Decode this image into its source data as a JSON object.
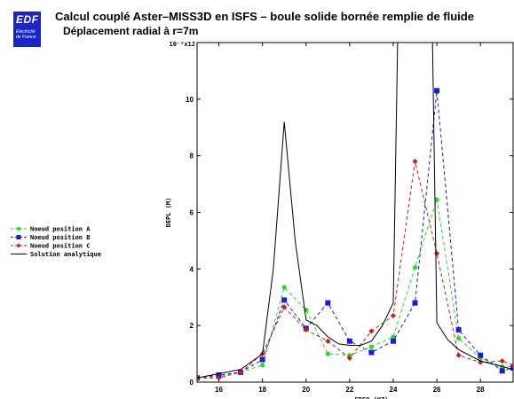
{
  "logo": {
    "main": "EDF",
    "sub": [
      "Electricité",
      "de France"
    ]
  },
  "header": {
    "title": "Calcul couplé Aster–MISS3D en ISFS – boule solide bornée remplie de fluide",
    "subtitle": "Déplacement radial à r=7m"
  },
  "chart_data": {
    "type": "line",
    "ylabel": "DEPL (M)",
    "xlabel": "FREQ (HZ)",
    "y_multiplier": "10⁻²x12",
    "xlim": [
      15,
      29.5
    ],
    "ylim": [
      0,
      12
    ],
    "x_ticks": [
      16,
      18,
      20,
      22,
      24,
      26,
      28
    ],
    "y_ticks": [
      0,
      2,
      4,
      6,
      8,
      10
    ],
    "grid": false,
    "legend_position": "left",
    "series": [
      {
        "name": "Noeud position A",
        "color": "#22dd22",
        "marker": "circle",
        "dash": true,
        "x": [
          15,
          16,
          17,
          18,
          19,
          20,
          21,
          22,
          23,
          24,
          25,
          26,
          27,
          28,
          29,
          29.5
        ],
        "y": [
          0.15,
          0.2,
          0.35,
          0.6,
          3.35,
          2.55,
          1.0,
          0.95,
          1.25,
          1.6,
          4.05,
          6.45,
          1.55,
          0.85,
          0.55,
          0.55
        ]
      },
      {
        "name": "Noeud position B",
        "color": "#1a1ae0",
        "marker": "square",
        "dash": true,
        "x": [
          15,
          16,
          17,
          18,
          19,
          20,
          21,
          22,
          23,
          24,
          25,
          26,
          27,
          28,
          29,
          29.5
        ],
        "y": [
          0.15,
          0.25,
          0.35,
          0.8,
          2.9,
          1.9,
          2.8,
          1.45,
          1.05,
          1.45,
          2.8,
          10.3,
          1.85,
          0.95,
          0.4,
          0.5
        ]
      },
      {
        "name": "Noeud position C",
        "color": "#cc1a1a",
        "marker": "diamond",
        "dash": true,
        "x": [
          15,
          16,
          17,
          18,
          19,
          20,
          21,
          22,
          23,
          24,
          25,
          26,
          27,
          28,
          29,
          29.5
        ],
        "y": [
          0.15,
          0.15,
          0.35,
          1.0,
          2.65,
          1.85,
          1.45,
          0.85,
          1.8,
          2.35,
          7.8,
          4.55,
          0.95,
          0.7,
          0.75,
          0.6
        ]
      },
      {
        "name": "Solution analytique",
        "color": "#000000",
        "marker": "none",
        "dash": false,
        "x": [
          15,
          16,
          17,
          18,
          18.5,
          19,
          19.5,
          20,
          20.5,
          21,
          21.5,
          22,
          22.5,
          23,
          23.5,
          24,
          24.2,
          25,
          25.8,
          26,
          26.5,
          27,
          28,
          29,
          29.5
        ],
        "y": [
          0.15,
          0.3,
          0.45,
          1.0,
          4.0,
          9.2,
          5.0,
          2.2,
          2.0,
          1.6,
          1.35,
          1.3,
          1.3,
          1.45,
          2.0,
          2.8,
          12,
          12,
          12,
          2.1,
          1.5,
          1.15,
          0.75,
          0.55,
          0.45
        ]
      }
    ]
  }
}
